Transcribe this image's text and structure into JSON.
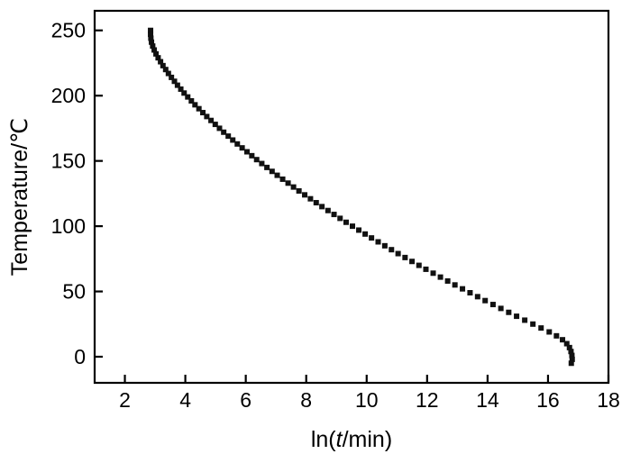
{
  "chart_data": {
    "type": "scatter",
    "title": "",
    "xlabel": "ln(t/min)",
    "xlabel_parts": [
      {
        "text": "ln(",
        "italic": false
      },
      {
        "text": "t",
        "italic": true
      },
      {
        "text": "/min)",
        "italic": false
      }
    ],
    "ylabel": "Temperature/℃",
    "xlim": [
      1,
      18
    ],
    "ylim": [
      -20,
      265
    ],
    "xticks": [
      2,
      4,
      6,
      8,
      10,
      12,
      14,
      16,
      18
    ],
    "yticks": [
      0,
      50,
      100,
      150,
      200,
      250
    ],
    "grid": false,
    "legend": "none",
    "marker": "filled-square",
    "marker_color": "#111111",
    "marker_size": 6,
    "axis_color": "#000000",
    "background_color": "#ffffff",
    "points": [
      [
        2.85,
        250
      ],
      [
        2.85,
        247
      ],
      [
        2.86,
        244
      ],
      [
        2.88,
        241
      ],
      [
        2.92,
        238
      ],
      [
        2.97,
        235
      ],
      [
        3.03,
        232
      ],
      [
        3.1,
        229
      ],
      [
        3.18,
        226
      ],
      [
        3.26,
        223
      ],
      [
        3.35,
        220
      ],
      [
        3.44,
        217
      ],
      [
        3.54,
        214
      ],
      [
        3.64,
        211
      ],
      [
        3.74,
        208
      ],
      [
        3.85,
        205
      ],
      [
        3.96,
        202
      ],
      [
        4.08,
        199
      ],
      [
        4.2,
        196
      ],
      [
        4.32,
        193
      ],
      [
        4.45,
        190
      ],
      [
        4.58,
        187
      ],
      [
        4.71,
        184
      ],
      [
        4.85,
        181
      ],
      [
        4.99,
        178
      ],
      [
        5.13,
        175
      ],
      [
        5.27,
        172
      ],
      [
        5.42,
        169
      ],
      [
        5.57,
        166
      ],
      [
        5.72,
        163
      ],
      [
        5.88,
        160
      ],
      [
        6.04,
        157
      ],
      [
        6.2,
        154
      ],
      [
        6.36,
        151
      ],
      [
        6.53,
        148
      ],
      [
        6.7,
        145
      ],
      [
        6.87,
        142
      ],
      [
        7.04,
        139
      ],
      [
        7.22,
        136
      ],
      [
        7.4,
        133
      ],
      [
        7.58,
        130
      ],
      [
        7.76,
        127
      ],
      [
        7.95,
        124
      ],
      [
        8.14,
        121
      ],
      [
        8.33,
        118
      ],
      [
        8.52,
        115
      ],
      [
        8.72,
        112
      ],
      [
        8.92,
        109
      ],
      [
        9.12,
        106
      ],
      [
        9.32,
        103
      ],
      [
        9.53,
        100
      ],
      [
        9.74,
        97
      ],
      [
        9.95,
        94
      ],
      [
        10.16,
        91
      ],
      [
        10.38,
        88
      ],
      [
        10.6,
        85
      ],
      [
        10.82,
        82
      ],
      [
        11.04,
        79
      ],
      [
        11.27,
        76
      ],
      [
        11.5,
        73
      ],
      [
        11.73,
        70
      ],
      [
        11.96,
        67
      ],
      [
        12.2,
        64
      ],
      [
        12.44,
        61
      ],
      [
        12.68,
        58
      ],
      [
        12.92,
        55
      ],
      [
        13.17,
        52
      ],
      [
        13.42,
        49
      ],
      [
        13.67,
        46
      ],
      [
        13.92,
        43
      ],
      [
        14.18,
        40
      ],
      [
        14.44,
        37
      ],
      [
        14.7,
        34
      ],
      [
        14.96,
        31
      ],
      [
        15.23,
        28
      ],
      [
        15.5,
        25
      ],
      [
        15.77,
        22
      ],
      [
        16.04,
        19
      ],
      [
        16.28,
        16
      ],
      [
        16.48,
        13
      ],
      [
        16.62,
        10
      ],
      [
        16.71,
        7
      ],
      [
        16.76,
        4
      ],
      [
        16.79,
        1
      ],
      [
        16.8,
        -2
      ],
      [
        16.77,
        -5
      ]
    ]
  }
}
